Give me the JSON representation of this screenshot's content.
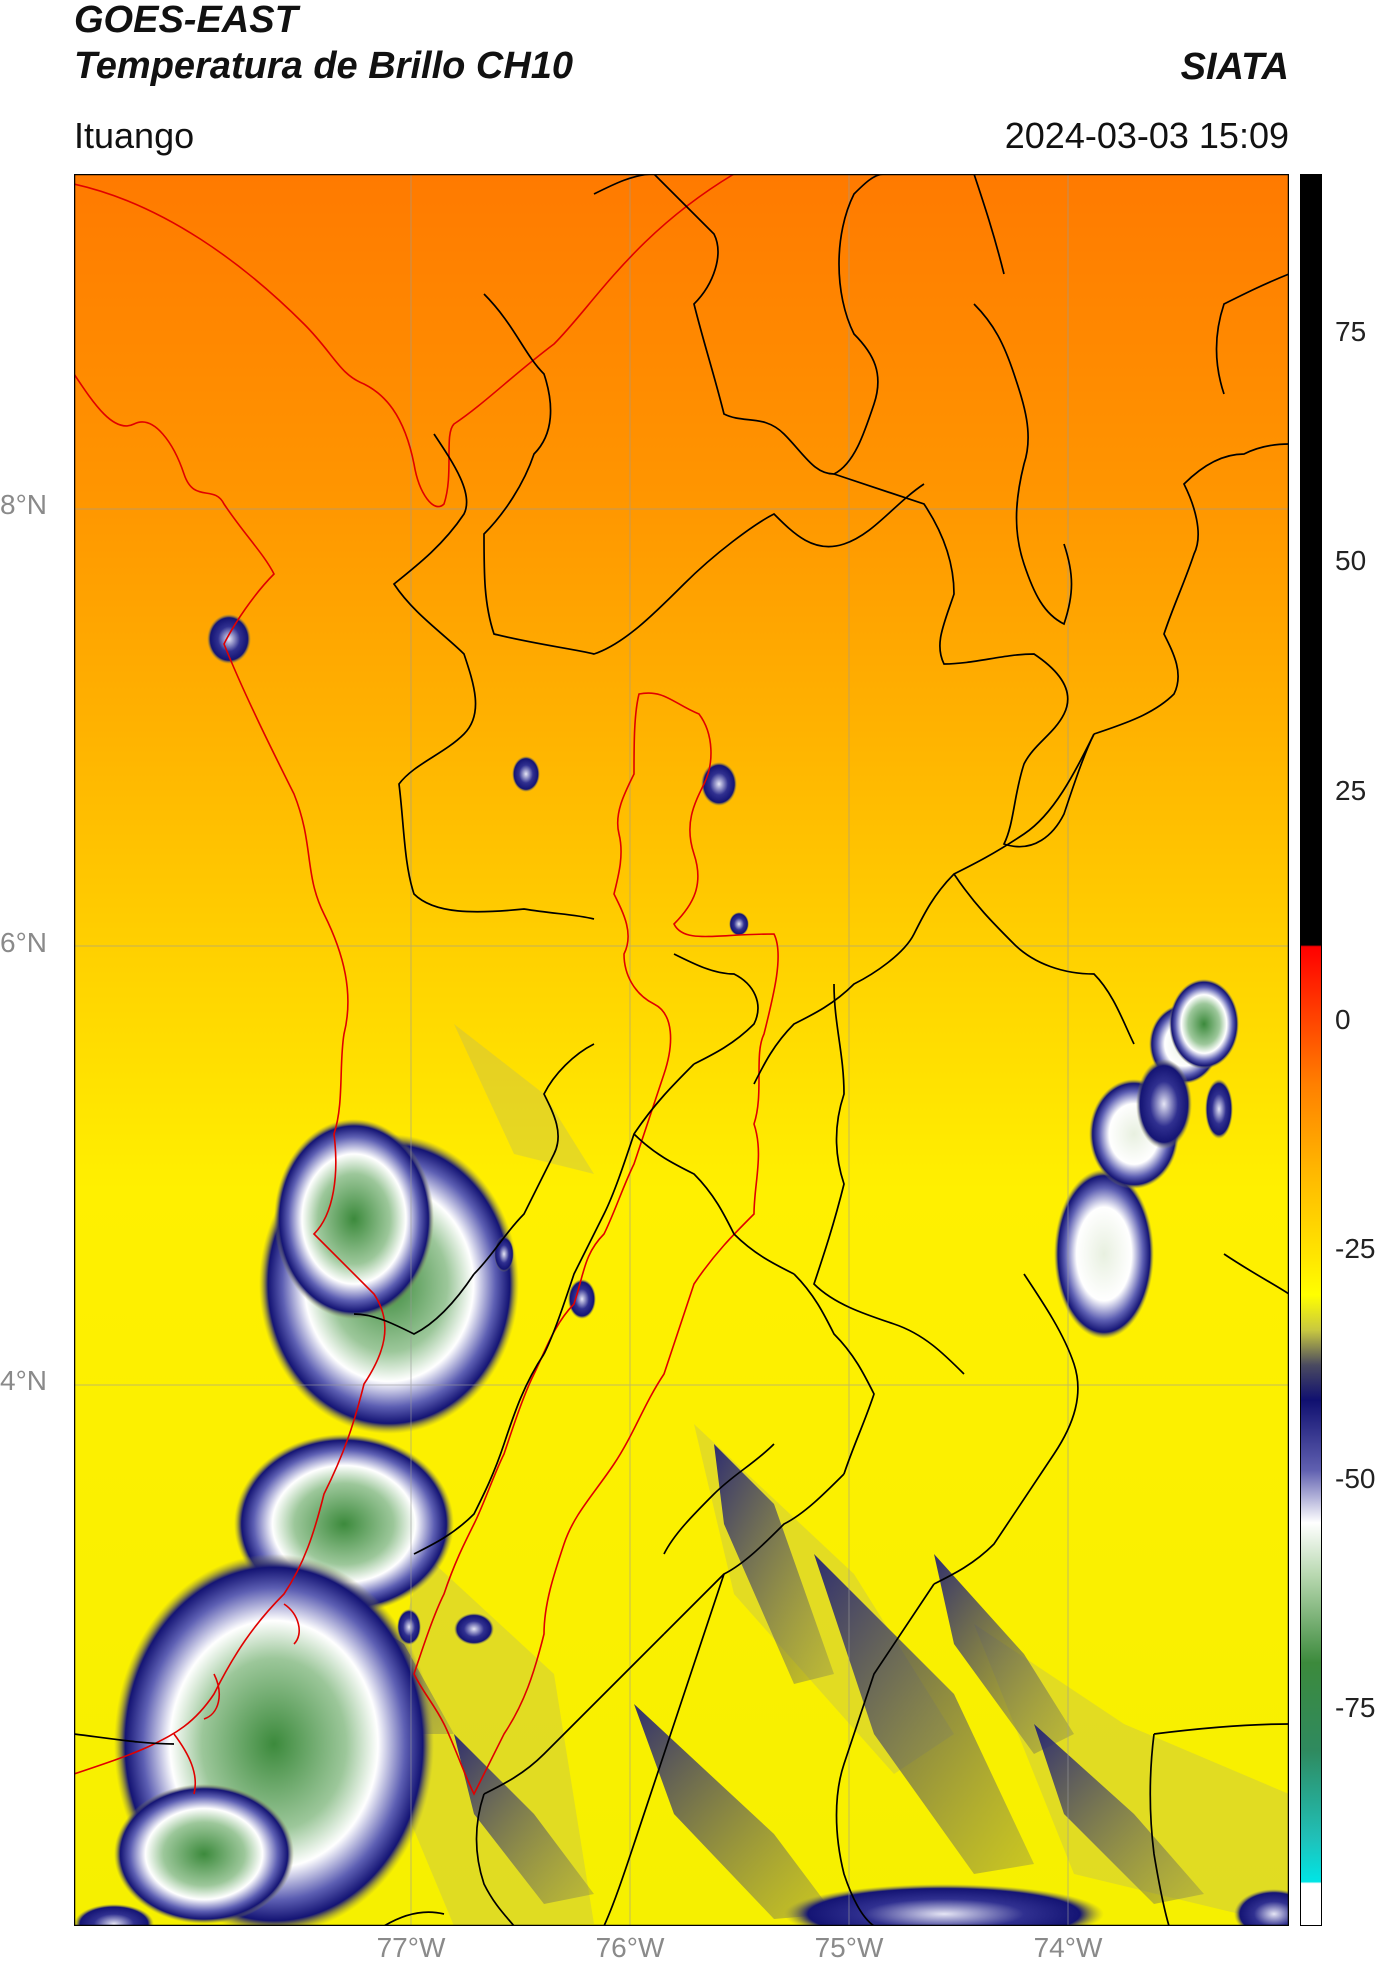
{
  "header": {
    "satellite": "GOES-EAST",
    "product": "Temperatura de Brillo CH10",
    "organization": "SIATA",
    "location": "Ituango",
    "datetime": "2024-03-03 15:09"
  },
  "map": {
    "lat_labels": [
      "8°N",
      "6°N",
      "4°N"
    ],
    "lon_labels": [
      "77°W",
      "76°W",
      "75°W",
      "74°W"
    ],
    "gridlines": true,
    "region_outline_color": "#e00000",
    "boundary_color": "#000000"
  },
  "colorbar": {
    "tick_labels": [
      "75",
      "50",
      "25",
      "0",
      "-25",
      "-50",
      "-75"
    ],
    "colors": {
      "hot": "#000000",
      "red": "#ff0000",
      "orange": "#ff8000",
      "yellow": "#ffff00",
      "navy": "#101070",
      "white": "#ffffff",
      "green": "#2e7d32",
      "cyan": "#00e5e5"
    }
  }
}
